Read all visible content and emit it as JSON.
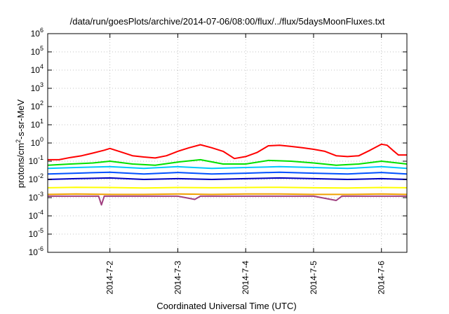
{
  "chart_data": {
    "type": "line",
    "title": "/data/run/goesPlots/archive/2014-07-06/08:00/flux/../flux/5daysMoonFluxes.txt",
    "xlabel": "Coordinated Universal Time (UTC)",
    "ylabel_parts": [
      "protons/cm",
      "2",
      "-s-sr-MeV"
    ],
    "y_scale": "log",
    "ylim": [
      1e-06,
      1000000.0
    ],
    "y_ticks": [
      {
        "base": "10",
        "exp": "-6",
        "value": 1e-06
      },
      {
        "base": "10",
        "exp": "-5",
        "value": 1e-05
      },
      {
        "base": "10",
        "exp": "-4",
        "value": 0.0001
      },
      {
        "base": "10",
        "exp": "-3",
        "value": 0.001
      },
      {
        "base": "10",
        "exp": "-2",
        "value": 0.01
      },
      {
        "base": "10",
        "exp": "-1",
        "value": 0.1
      },
      {
        "base": "10",
        "exp": "0",
        "value": 1
      },
      {
        "base": "10",
        "exp": "1",
        "value": 10
      },
      {
        "base": "10",
        "exp": "2",
        "value": 100
      },
      {
        "base": "10",
        "exp": "3",
        "value": 1000
      },
      {
        "base": "10",
        "exp": "4",
        "value": 10000
      },
      {
        "base": "10",
        "exp": "5",
        "value": 100000
      },
      {
        "base": "10",
        "exp": "6",
        "value": 1000000
      }
    ],
    "xlim": [
      "2014-07-01T02:00",
      "2014-07-06T09:00"
    ],
    "x_ticks": [
      {
        "label": "2014-7-2",
        "date": "2014-07-02T00:00"
      },
      {
        "label": "2014-7-3",
        "date": "2014-07-03T00:00"
      },
      {
        "label": "2014-7-4",
        "date": "2014-07-04T00:00"
      },
      {
        "label": "2014-7-5",
        "date": "2014-07-05T00:00"
      },
      {
        "label": "2014-7-6",
        "date": "2014-07-06T00:00"
      }
    ],
    "grid": true,
    "series": [
      {
        "color": "#ff0000",
        "points": [
          [
            "2014-07-01T02:00",
            0.12
          ],
          [
            "2014-07-01T06:00",
            0.12
          ],
          [
            "2014-07-01T10:00",
            0.16
          ],
          [
            "2014-07-01T14:00",
            0.2
          ],
          [
            "2014-07-01T18:00",
            0.28
          ],
          [
            "2014-07-01T22:00",
            0.4
          ],
          [
            "2014-07-02T00:00",
            0.5
          ],
          [
            "2014-07-02T04:00",
            0.32
          ],
          [
            "2014-07-02T08:00",
            0.2
          ],
          [
            "2014-07-02T12:00",
            0.17
          ],
          [
            "2014-07-02T16:00",
            0.15
          ],
          [
            "2014-07-02T20:00",
            0.2
          ],
          [
            "2014-07-03T00:00",
            0.35
          ],
          [
            "2014-07-03T04:00",
            0.55
          ],
          [
            "2014-07-03T08:00",
            0.8
          ],
          [
            "2014-07-03T12:00",
            0.55
          ],
          [
            "2014-07-03T16:00",
            0.35
          ],
          [
            "2014-07-03T20:00",
            0.14
          ],
          [
            "2014-07-04T00:00",
            0.18
          ],
          [
            "2014-07-04T04:00",
            0.3
          ],
          [
            "2014-07-04T08:00",
            0.7
          ],
          [
            "2014-07-04T12:00",
            0.75
          ],
          [
            "2014-07-04T16:00",
            0.65
          ],
          [
            "2014-07-04T20:00",
            0.55
          ],
          [
            "2014-07-05T00:00",
            0.45
          ],
          [
            "2014-07-05T04:00",
            0.35
          ],
          [
            "2014-07-05T08:00",
            0.2
          ],
          [
            "2014-07-05T12:00",
            0.18
          ],
          [
            "2014-07-05T16:00",
            0.2
          ],
          [
            "2014-07-05T20:00",
            0.4
          ],
          [
            "2014-07-06T00:00",
            0.85
          ],
          [
            "2014-07-06T02:00",
            0.75
          ],
          [
            "2014-07-06T04:00",
            0.4
          ],
          [
            "2014-07-06T06:00",
            0.22
          ],
          [
            "2014-07-06T09:00",
            0.22
          ]
        ]
      },
      {
        "color": "#00e000",
        "points": [
          [
            "2014-07-01T02:00",
            0.06
          ],
          [
            "2014-07-01T10:00",
            0.07
          ],
          [
            "2014-07-01T18:00",
            0.08
          ],
          [
            "2014-07-02T00:00",
            0.1
          ],
          [
            "2014-07-02T08:00",
            0.07
          ],
          [
            "2014-07-02T16:00",
            0.06
          ],
          [
            "2014-07-03T00:00",
            0.09
          ],
          [
            "2014-07-03T08:00",
            0.12
          ],
          [
            "2014-07-03T16:00",
            0.07
          ],
          [
            "2014-07-04T00:00",
            0.07
          ],
          [
            "2014-07-04T08:00",
            0.11
          ],
          [
            "2014-07-04T16:00",
            0.1
          ],
          [
            "2014-07-05T00:00",
            0.08
          ],
          [
            "2014-07-05T08:00",
            0.06
          ],
          [
            "2014-07-05T16:00",
            0.07
          ],
          [
            "2014-07-06T00:00",
            0.1
          ],
          [
            "2014-07-06T09:00",
            0.07
          ]
        ]
      },
      {
        "color": "#00c8ff",
        "points": [
          [
            "2014-07-01T02:00",
            0.04
          ],
          [
            "2014-07-01T12:00",
            0.045
          ],
          [
            "2014-07-02T00:00",
            0.05
          ],
          [
            "2014-07-02T12:00",
            0.04
          ],
          [
            "2014-07-03T00:00",
            0.05
          ],
          [
            "2014-07-03T12:00",
            0.04
          ],
          [
            "2014-07-04T00:00",
            0.045
          ],
          [
            "2014-07-04T12:00",
            0.05
          ],
          [
            "2014-07-05T00:00",
            0.045
          ],
          [
            "2014-07-05T12:00",
            0.04
          ],
          [
            "2014-07-06T00:00",
            0.05
          ],
          [
            "2014-07-06T09:00",
            0.04
          ]
        ]
      },
      {
        "color": "#0050ff",
        "points": [
          [
            "2014-07-01T02:00",
            0.02
          ],
          [
            "2014-07-01T12:00",
            0.022
          ],
          [
            "2014-07-02T00:00",
            0.025
          ],
          [
            "2014-07-02T12:00",
            0.02
          ],
          [
            "2014-07-03T00:00",
            0.024
          ],
          [
            "2014-07-03T12:00",
            0.02
          ],
          [
            "2014-07-04T00:00",
            0.022
          ],
          [
            "2014-07-04T12:00",
            0.025
          ],
          [
            "2014-07-05T00:00",
            0.022
          ],
          [
            "2014-07-05T12:00",
            0.02
          ],
          [
            "2014-07-06T00:00",
            0.024
          ],
          [
            "2014-07-06T09:00",
            0.02
          ]
        ]
      },
      {
        "color": "#0000c0",
        "points": [
          [
            "2014-07-01T02:00",
            0.01
          ],
          [
            "2014-07-01T12:00",
            0.011
          ],
          [
            "2014-07-02T00:00",
            0.012
          ],
          [
            "2014-07-02T12:00",
            0.01
          ],
          [
            "2014-07-03T00:00",
            0.011
          ],
          [
            "2014-07-03T12:00",
            0.01
          ],
          [
            "2014-07-04T00:00",
            0.011
          ],
          [
            "2014-07-04T12:00",
            0.012
          ],
          [
            "2014-07-05T00:00",
            0.011
          ],
          [
            "2014-07-05T12:00",
            0.01
          ],
          [
            "2014-07-06T00:00",
            0.011
          ],
          [
            "2014-07-06T09:00",
            0.01
          ]
        ]
      },
      {
        "color": "#ffff00",
        "points": [
          [
            "2014-07-01T02:00",
            0.0035
          ],
          [
            "2014-07-01T12:00",
            0.0037
          ],
          [
            "2014-07-02T00:00",
            0.0036
          ],
          [
            "2014-07-02T12:00",
            0.0034
          ],
          [
            "2014-07-03T00:00",
            0.0036
          ],
          [
            "2014-07-03T12:00",
            0.0035
          ],
          [
            "2014-07-04T00:00",
            0.0036
          ],
          [
            "2014-07-04T12:00",
            0.0037
          ],
          [
            "2014-07-05T00:00",
            0.0035
          ],
          [
            "2014-07-05T12:00",
            0.0034
          ],
          [
            "2014-07-06T00:00",
            0.0036
          ],
          [
            "2014-07-06T09:00",
            0.0035
          ]
        ]
      },
      {
        "color": "#f0a000",
        "points": [
          [
            "2014-07-01T02:00",
            0.0015
          ],
          [
            "2014-07-01T12:00",
            0.0016
          ],
          [
            "2014-07-02T00:00",
            0.0015
          ],
          [
            "2014-07-02T12:00",
            0.0015
          ],
          [
            "2014-07-03T00:00",
            0.0016
          ],
          [
            "2014-07-03T12:00",
            0.0015
          ],
          [
            "2014-07-04T00:00",
            0.0016
          ],
          [
            "2014-07-04T12:00",
            0.0016
          ],
          [
            "2014-07-05T00:00",
            0.0015
          ],
          [
            "2014-07-05T12:00",
            0.0015
          ],
          [
            "2014-07-06T00:00",
            0.0016
          ],
          [
            "2014-07-06T09:00",
            0.0015
          ]
        ]
      },
      {
        "color": "#a04080",
        "points": [
          [
            "2014-07-01T02:00",
            0.0012
          ],
          [
            "2014-07-01T12:00",
            0.0012
          ],
          [
            "2014-07-01T20:00",
            0.0012
          ],
          [
            "2014-07-01T21:00",
            0.0004
          ],
          [
            "2014-07-01T22:00",
            0.0012
          ],
          [
            "2014-07-02T12:00",
            0.0012
          ],
          [
            "2014-07-03T00:00",
            0.0012
          ],
          [
            "2014-07-03T06:00",
            0.0008
          ],
          [
            "2014-07-03T08:00",
            0.0012
          ],
          [
            "2014-07-04T00:00",
            0.0012
          ],
          [
            "2014-07-04T12:00",
            0.0012
          ],
          [
            "2014-07-05T00:00",
            0.0012
          ],
          [
            "2014-07-05T08:00",
            0.0007
          ],
          [
            "2014-07-05T10:00",
            0.0012
          ],
          [
            "2014-07-06T00:00",
            0.0012
          ],
          [
            "2014-07-06T09:00",
            0.0012
          ]
        ]
      }
    ]
  }
}
